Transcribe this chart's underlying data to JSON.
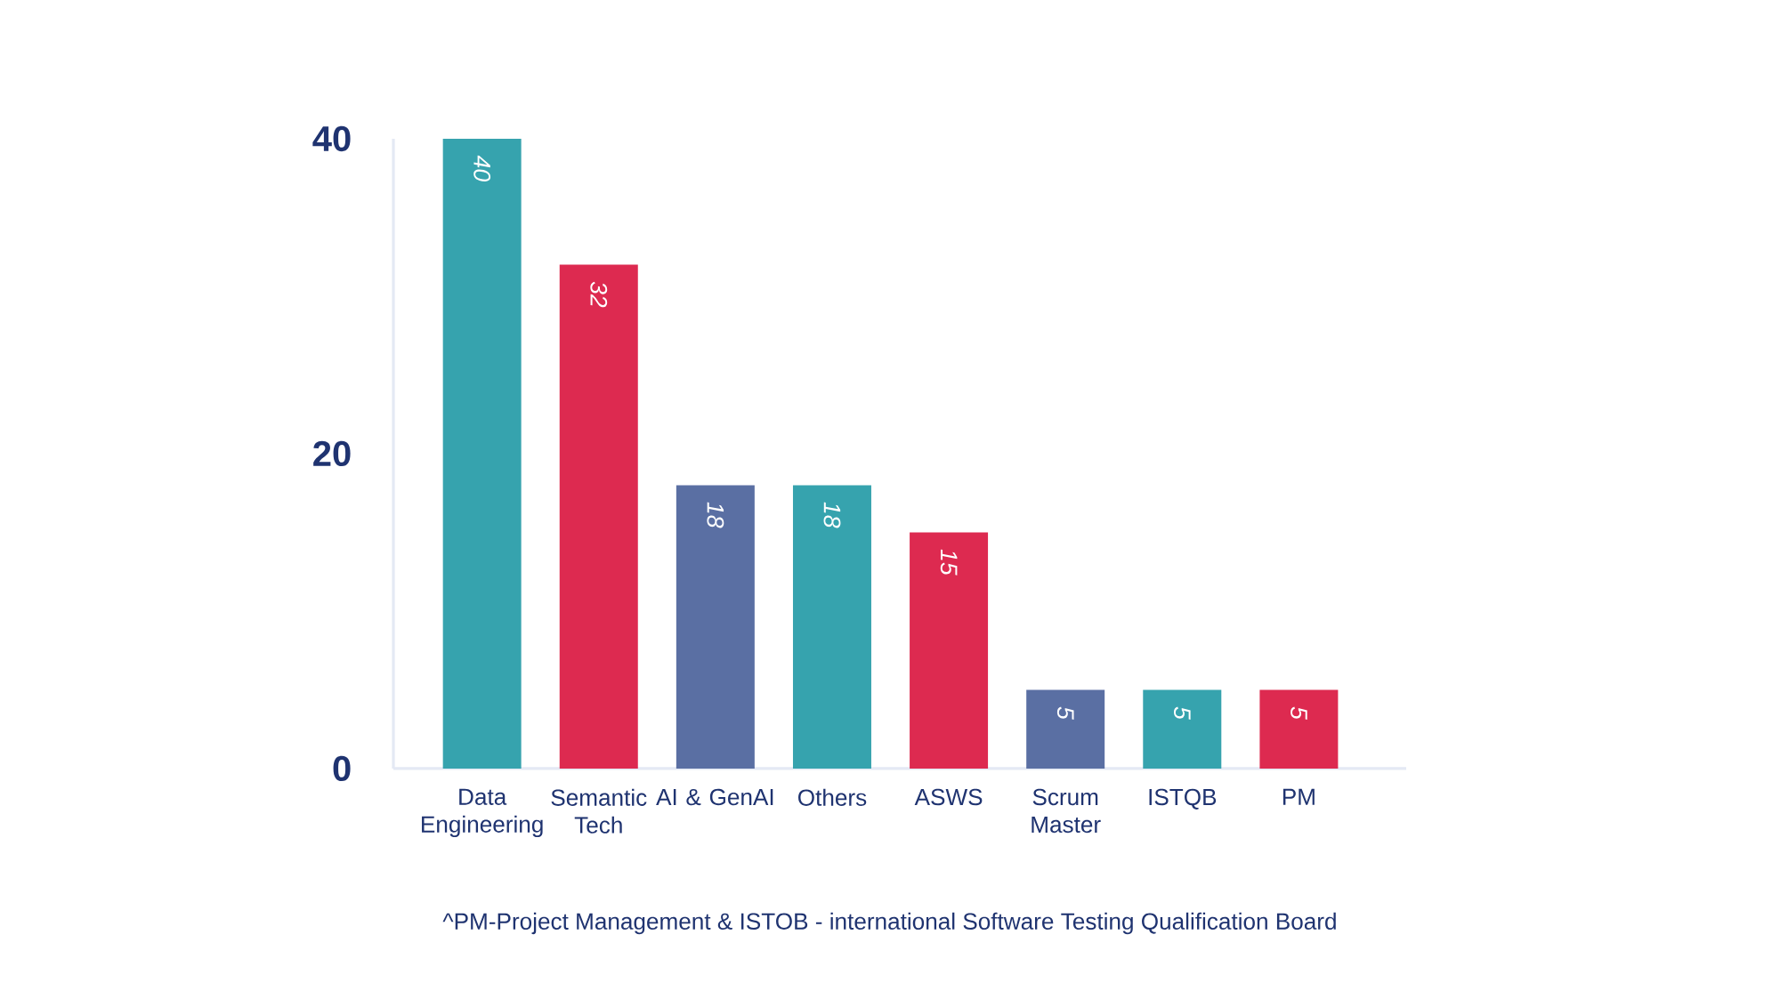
{
  "chart_data": {
    "type": "bar",
    "categories": [
      "Data Engineering",
      "Semantic Tech",
      "AI & GenAI",
      "Others",
      "ASWS",
      "Scrum Master",
      "ISTQB",
      "PM"
    ],
    "values": [
      40,
      32,
      18,
      18,
      15,
      5,
      5,
      5
    ],
    "colors": [
      "#36a3ae",
      "#dd2a50",
      "#5a6fa3",
      "#36a3ae",
      "#dd2a50",
      "#5a6fa3",
      "#36a3ae",
      "#dd2a50"
    ],
    "ylim": [
      0,
      40
    ],
    "yticks": [
      0,
      20,
      40
    ],
    "data_labels": true,
    "annotations": [
      "^PM-Project Management & ISTOB - international Software Testing Qualification Board"
    ]
  }
}
